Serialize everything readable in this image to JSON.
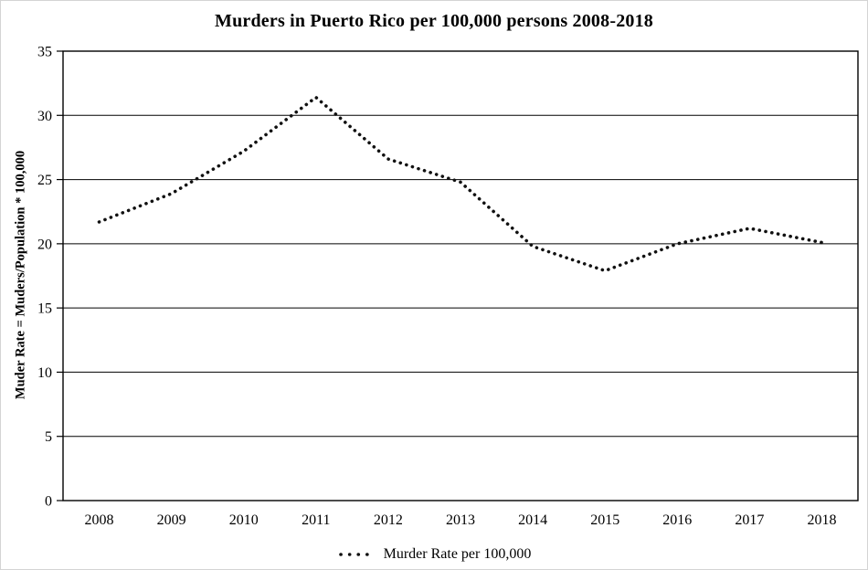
{
  "chart_data": {
    "type": "line",
    "line_style": "dotted",
    "title": "Murders in Puerto Rico per 100,000 persons 2008-2018",
    "xlabel": "",
    "ylabel": "Muder Rate = Muders/Population * 100,000",
    "categories": [
      "2008",
      "2009",
      "2010",
      "2011",
      "2012",
      "2013",
      "2014",
      "2015",
      "2016",
      "2017",
      "2018"
    ],
    "series": [
      {
        "name": "Murder Rate per 100,000",
        "values": [
          21.7,
          23.9,
          27.2,
          31.4,
          26.6,
          24.8,
          19.8,
          17.9,
          20.0,
          21.2,
          20.1
        ]
      }
    ],
    "ylim": [
      0,
      35
    ],
    "yticks": [
      0,
      5,
      10,
      15,
      20,
      25,
      30,
      35
    ],
    "ytick_interval": 5,
    "grid": "horizontal",
    "legend_position": "bottom",
    "line_color": "#111111",
    "background_color": "#ffffff",
    "frame_color": "#000000"
  }
}
